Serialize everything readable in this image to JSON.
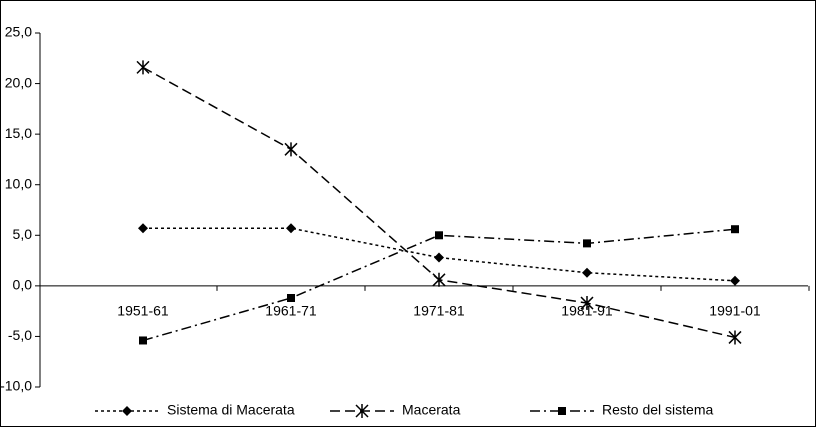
{
  "chart_data": {
    "type": "line",
    "categories": [
      "1951-61",
      "1961-71",
      "1971-81",
      "1981-91",
      "1991-01"
    ],
    "series": [
      {
        "name": "Sistema di Macerata",
        "color": "#000000",
        "values": [
          5.7,
          5.7,
          2.8,
          1.3,
          0.5
        ]
      },
      {
        "name": "Macerata",
        "color": "#000000",
        "values": [
          21.6,
          13.5,
          0.6,
          -1.7,
          -5.1
        ]
      },
      {
        "name": "Resto del sistema",
        "color": "#000000",
        "values": [
          -5.4,
          -1.2,
          5.0,
          4.2,
          5.6
        ]
      }
    ],
    "ylim": [
      -10,
      25
    ],
    "yticks": [
      {
        "value": -10,
        "label": "-10,0"
      },
      {
        "value": -5,
        "label": "-5,0"
      },
      {
        "value": 0,
        "label": "0,0"
      },
      {
        "value": 5,
        "label": "5,0"
      },
      {
        "value": 10,
        "label": "10,0"
      },
      {
        "value": 15,
        "label": "15,0"
      },
      {
        "value": 20,
        "label": "20,0"
      },
      {
        "value": 25,
        "label": "25,0"
      }
    ],
    "grid": false,
    "legend": "bottom"
  }
}
